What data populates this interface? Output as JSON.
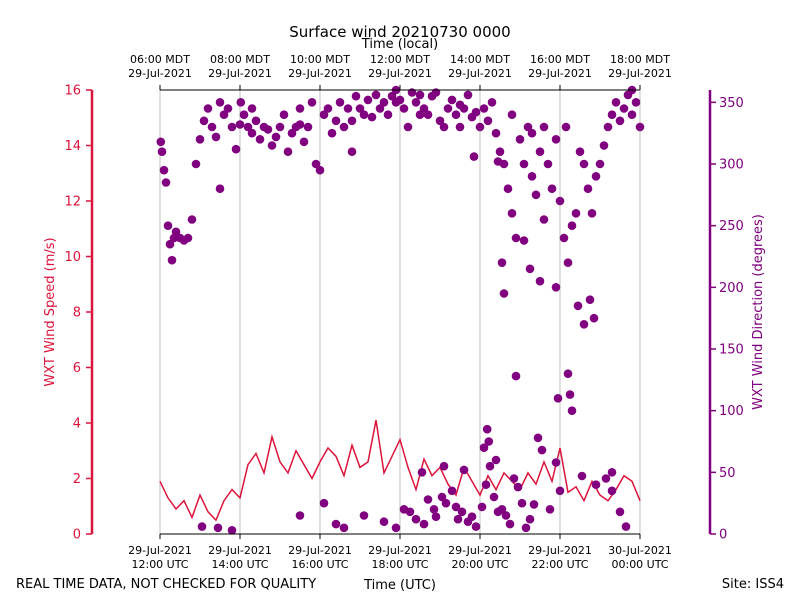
{
  "chart_data": {
    "type": "line+scatter",
    "title": "Surface wind 20210730 0000",
    "xlabel_bottom": "Time (UTC)",
    "xlabel_top": "Time (local)",
    "ylabel_left": "WXT Wind Speed (m/s)",
    "ylabel_right": "WXT Wind Direction (degrees)",
    "xlim_hours_utc": [
      12,
      24
    ],
    "ylim_left": [
      0,
      16
    ],
    "ylim_right": [
      0,
      360
    ],
    "grid": "vertical",
    "bottom_ticks": [
      {
        "h": 12,
        "l1": "29-Jul-2021",
        "l2": "12:00 UTC"
      },
      {
        "h": 14,
        "l1": "29-Jul-2021",
        "l2": "14:00 UTC"
      },
      {
        "h": 16,
        "l1": "29-Jul-2021",
        "l2": "16:00 UTC"
      },
      {
        "h": 18,
        "l1": "29-Jul-2021",
        "l2": "18:00 UTC"
      },
      {
        "h": 20,
        "l1": "29-Jul-2021",
        "l2": "20:00 UTC"
      },
      {
        "h": 22,
        "l1": "29-Jul-2021",
        "l2": "22:00 UTC"
      },
      {
        "h": 24,
        "l1": "30-Jul-2021",
        "l2": "00:00 UTC"
      }
    ],
    "top_ticks": [
      {
        "h": 12,
        "l1": "06:00 MDT",
        "l2": "29-Jul-2021"
      },
      {
        "h": 14,
        "l1": "08:00 MDT",
        "l2": "29-Jul-2021"
      },
      {
        "h": 16,
        "l1": "10:00 MDT",
        "l2": "29-Jul-2021"
      },
      {
        "h": 18,
        "l1": "12:00 MDT",
        "l2": "29-Jul-2021"
      },
      {
        "h": 20,
        "l1": "14:00 MDT",
        "l2": "29-Jul-2021"
      },
      {
        "h": 22,
        "l1": "16:00 MDT",
        "l2": "29-Jul-2021"
      },
      {
        "h": 24,
        "l1": "18:00 MDT",
        "l2": "29-Jul-2021"
      }
    ],
    "left_ticks": [
      0,
      2,
      4,
      6,
      8,
      10,
      12,
      14,
      16
    ],
    "right_ticks": [
      0,
      50,
      100,
      150,
      200,
      250,
      300,
      350
    ],
    "series": [
      {
        "name": "WXT Wind Speed",
        "axis": "left",
        "style": "line",
        "color": "#dc143c",
        "points": [
          [
            12.0,
            1.9
          ],
          [
            12.2,
            1.3
          ],
          [
            12.4,
            0.9
          ],
          [
            12.6,
            1.2
          ],
          [
            12.8,
            0.6
          ],
          [
            13.0,
            1.4
          ],
          [
            13.2,
            0.8
          ],
          [
            13.4,
            0.5
          ],
          [
            13.6,
            1.2
          ],
          [
            13.8,
            1.6
          ],
          [
            14.0,
            1.3
          ],
          [
            14.2,
            2.5
          ],
          [
            14.4,
            2.9
          ],
          [
            14.6,
            2.2
          ],
          [
            14.8,
            3.5
          ],
          [
            15.0,
            2.6
          ],
          [
            15.2,
            2.2
          ],
          [
            15.4,
            3.0
          ],
          [
            15.6,
            2.5
          ],
          [
            15.8,
            2.0
          ],
          [
            16.0,
            2.6
          ],
          [
            16.2,
            3.1
          ],
          [
            16.4,
            2.8
          ],
          [
            16.6,
            2.1
          ],
          [
            16.8,
            3.2
          ],
          [
            17.0,
            2.4
          ],
          [
            17.2,
            2.6
          ],
          [
            17.4,
            4.1
          ],
          [
            17.6,
            2.2
          ],
          [
            17.8,
            2.8
          ],
          [
            18.0,
            3.4
          ],
          [
            18.2,
            2.4
          ],
          [
            18.4,
            1.6
          ],
          [
            18.6,
            2.7
          ],
          [
            18.8,
            2.1
          ],
          [
            19.0,
            2.4
          ],
          [
            19.2,
            1.8
          ],
          [
            19.4,
            1.4
          ],
          [
            19.6,
            2.4
          ],
          [
            19.8,
            1.9
          ],
          [
            20.0,
            1.4
          ],
          [
            20.2,
            2.1
          ],
          [
            20.4,
            1.6
          ],
          [
            20.6,
            2.2
          ],
          [
            20.8,
            1.9
          ],
          [
            21.0,
            1.6
          ],
          [
            21.2,
            2.2
          ],
          [
            21.4,
            1.8
          ],
          [
            21.6,
            2.6
          ],
          [
            21.8,
            1.9
          ],
          [
            22.0,
            3.1
          ],
          [
            22.2,
            1.5
          ],
          [
            22.4,
            1.7
          ],
          [
            22.6,
            1.2
          ],
          [
            22.8,
            1.9
          ],
          [
            23.0,
            1.4
          ],
          [
            23.2,
            1.2
          ],
          [
            23.4,
            1.6
          ],
          [
            23.6,
            2.1
          ],
          [
            23.8,
            1.9
          ],
          [
            24.0,
            1.2
          ]
        ]
      },
      {
        "name": "WXT Wind Direction",
        "axis": "right",
        "style": "scatter",
        "color": "#800080",
        "points": [
          [
            12.02,
            318
          ],
          [
            12.05,
            310
          ],
          [
            12.1,
            295
          ],
          [
            12.15,
            285
          ],
          [
            12.2,
            250
          ],
          [
            12.25,
            235
          ],
          [
            12.3,
            222
          ],
          [
            12.35,
            240
          ],
          [
            12.4,
            245
          ],
          [
            12.5,
            240
          ],
          [
            12.6,
            238
          ],
          [
            12.7,
            240
          ],
          [
            12.8,
            255
          ],
          [
            12.9,
            300
          ],
          [
            13.0,
            320
          ],
          [
            13.1,
            335
          ],
          [
            13.2,
            345
          ],
          [
            13.3,
            330
          ],
          [
            13.4,
            322
          ],
          [
            13.5,
            350
          ],
          [
            13.6,
            340
          ],
          [
            13.7,
            345
          ],
          [
            13.8,
            330
          ],
          [
            13.9,
            312
          ],
          [
            14.0,
            332
          ],
          [
            14.1,
            340
          ],
          [
            14.2,
            330
          ],
          [
            14.3,
            325
          ],
          [
            14.4,
            335
          ],
          [
            14.5,
            320
          ],
          [
            14.6,
            330
          ],
          [
            14.7,
            328
          ],
          [
            14.8,
            315
          ],
          [
            14.9,
            322
          ],
          [
            15.0,
            330
          ],
          [
            15.1,
            340
          ],
          [
            15.2,
            310
          ],
          [
            15.3,
            325
          ],
          [
            15.4,
            330
          ],
          [
            15.5,
            345
          ],
          [
            15.6,
            318
          ],
          [
            15.7,
            330
          ],
          [
            15.8,
            350
          ],
          [
            15.9,
            300
          ],
          [
            16.0,
            295
          ],
          [
            16.1,
            340
          ],
          [
            16.2,
            345
          ],
          [
            16.3,
            325
          ],
          [
            16.4,
            335
          ],
          [
            16.5,
            350
          ],
          [
            16.6,
            330
          ],
          [
            16.7,
            345
          ],
          [
            16.8,
            335
          ],
          [
            16.9,
            355
          ],
          [
            17.0,
            345
          ],
          [
            17.1,
            340
          ],
          [
            17.2,
            352
          ],
          [
            17.3,
            338
          ],
          [
            17.4,
            356
          ],
          [
            17.5,
            345
          ],
          [
            17.6,
            350
          ],
          [
            17.7,
            340
          ],
          [
            17.8,
            355
          ],
          [
            17.9,
            360
          ],
          [
            18.0,
            352
          ],
          [
            18.1,
            345
          ],
          [
            18.2,
            330
          ],
          [
            18.3,
            358
          ],
          [
            18.4,
            350
          ],
          [
            18.5,
            356
          ],
          [
            18.6,
            345
          ],
          [
            18.7,
            340
          ],
          [
            18.8,
            355
          ],
          [
            18.9,
            358
          ],
          [
            19.0,
            335
          ],
          [
            19.1,
            330
          ],
          [
            19.2,
            345
          ],
          [
            19.3,
            352
          ],
          [
            19.4,
            340
          ],
          [
            19.5,
            330
          ],
          [
            19.6,
            345
          ],
          [
            19.7,
            356
          ],
          [
            19.8,
            338
          ],
          [
            19.9,
            342
          ],
          [
            20.0,
            330
          ],
          [
            20.1,
            345
          ],
          [
            20.2,
            335
          ],
          [
            20.3,
            350
          ],
          [
            20.4,
            325
          ],
          [
            20.5,
            310
          ],
          [
            20.6,
            300
          ],
          [
            20.7,
            280
          ],
          [
            20.8,
            260
          ],
          [
            20.9,
            240
          ],
          [
            21.0,
            320
          ],
          [
            21.1,
            300
          ],
          [
            21.2,
            330
          ],
          [
            21.3,
            290
          ],
          [
            21.4,
            275
          ],
          [
            21.5,
            310
          ],
          [
            21.6,
            330
          ],
          [
            21.7,
            300
          ],
          [
            21.8,
            280
          ],
          [
            21.9,
            320
          ],
          [
            22.0,
            270
          ],
          [
            22.1,
            240
          ],
          [
            22.2,
            220
          ],
          [
            22.3,
            250
          ],
          [
            22.4,
            260
          ],
          [
            22.5,
            310
          ],
          [
            22.6,
            300
          ],
          [
            22.7,
            280
          ],
          [
            22.8,
            260
          ],
          [
            22.9,
            290
          ],
          [
            23.0,
            300
          ],
          [
            23.1,
            315
          ],
          [
            23.2,
            330
          ],
          [
            23.3,
            340
          ],
          [
            23.4,
            350
          ],
          [
            23.5,
            335
          ],
          [
            23.6,
            345
          ],
          [
            23.7,
            356
          ],
          [
            23.8,
            340
          ],
          [
            23.9,
            350
          ],
          [
            24.0,
            330
          ],
          [
            14.02,
            350
          ],
          [
            14.3,
            345
          ],
          [
            15.5,
            332
          ],
          [
            16.8,
            310
          ],
          [
            17.9,
            350
          ],
          [
            18.5,
            340
          ],
          [
            19.5,
            348
          ],
          [
            20.8,
            340
          ],
          [
            21.3,
            325
          ],
          [
            23.8,
            360
          ],
          [
            13.5,
            280
          ],
          [
            19.85,
            306
          ],
          [
            20.45,
            302
          ],
          [
            21.1,
            238
          ],
          [
            21.6,
            255
          ],
          [
            22.15,
            330
          ],
          [
            20.55,
            220
          ],
          [
            21.25,
            215
          ],
          [
            20.6,
            195
          ],
          [
            21.5,
            205
          ],
          [
            22.45,
            185
          ],
          [
            22.6,
            170
          ],
          [
            22.75,
            190
          ],
          [
            22.85,
            175
          ],
          [
            21.9,
            200
          ],
          [
            22.2,
            130
          ],
          [
            22.25,
            113
          ],
          [
            20.9,
            128
          ],
          [
            22.3,
            100
          ],
          [
            21.95,
            110
          ],
          [
            13.05,
            6
          ],
          [
            13.45,
            5
          ],
          [
            13.8,
            3
          ],
          [
            15.5,
            15
          ],
          [
            16.1,
            25
          ],
          [
            16.4,
            8
          ],
          [
            16.6,
            5
          ],
          [
            17.1,
            15
          ],
          [
            17.6,
            10
          ],
          [
            17.9,
            5
          ],
          [
            18.1,
            20
          ],
          [
            18.25,
            18
          ],
          [
            18.4,
            12
          ],
          [
            18.6,
            8
          ],
          [
            18.7,
            28
          ],
          [
            18.85,
            20
          ],
          [
            18.9,
            14
          ],
          [
            19.05,
            30
          ],
          [
            19.15,
            25
          ],
          [
            19.3,
            35
          ],
          [
            19.4,
            22
          ],
          [
            19.45,
            12
          ],
          [
            19.55,
            18
          ],
          [
            19.7,
            10
          ],
          [
            19.8,
            14
          ],
          [
            19.9,
            6
          ],
          [
            20.05,
            22
          ],
          [
            20.15,
            40
          ],
          [
            20.25,
            55
          ],
          [
            20.35,
            30
          ],
          [
            20.45,
            18
          ],
          [
            20.55,
            20
          ],
          [
            20.65,
            15
          ],
          [
            20.75,
            8
          ],
          [
            20.85,
            45
          ],
          [
            20.95,
            38
          ],
          [
            21.05,
            25
          ],
          [
            21.15,
            5
          ],
          [
            21.25,
            12
          ],
          [
            21.35,
            24
          ],
          [
            21.45,
            78
          ],
          [
            21.55,
            68
          ],
          [
            21.75,
            20
          ],
          [
            22.0,
            35
          ],
          [
            22.55,
            47
          ],
          [
            22.9,
            40
          ],
          [
            23.15,
            45
          ],
          [
            23.3,
            35
          ],
          [
            23.5,
            18
          ],
          [
            23.65,
            6
          ],
          [
            20.18,
            85
          ],
          [
            20.22,
            75
          ],
          [
            20.4,
            60
          ],
          [
            20.1,
            70
          ],
          [
            18.55,
            50
          ],
          [
            19.1,
            55
          ],
          [
            19.6,
            52
          ],
          [
            21.9,
            58
          ],
          [
            23.3,
            50
          ]
        ]
      }
    ]
  },
  "footer": {
    "disclaimer": "REAL TIME DATA, NOT CHECKED FOR QUALITY",
    "site": "Site: ISS4"
  }
}
